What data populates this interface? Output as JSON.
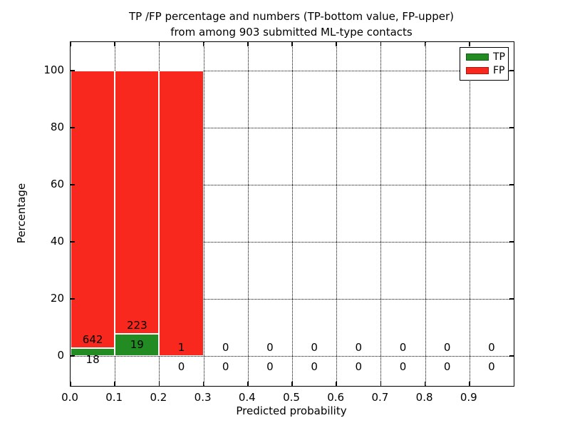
{
  "chart_data": {
    "type": "bar",
    "stacked": true,
    "title_line1": "TP /FP percentage and numbers (TP-bottom value, FP-upper)",
    "title_line2": "from among 903 submitted ML-type contacts",
    "xlabel": "Predicted probability",
    "ylabel": "Percentage",
    "total_contacts": 903,
    "xlim": [
      0.0,
      1.0
    ],
    "ylim": [
      -10,
      110
    ],
    "grid": "dotted",
    "x_tick_labels": [
      "0.0",
      "0.1",
      "0.2",
      "0.3",
      "0.4",
      "0.5",
      "0.6",
      "0.7",
      "0.8",
      "0.9"
    ],
    "y_tick_labels": [
      "0",
      "20",
      "40",
      "60",
      "80",
      "100"
    ],
    "y_tick_values": [
      0,
      20,
      40,
      60,
      80,
      100
    ],
    "bin_width": 0.1,
    "bins": [
      {
        "range": "0.0-0.1",
        "tp": 18,
        "fp": 642
      },
      {
        "range": "0.1-0.2",
        "tp": 19,
        "fp": 223
      },
      {
        "range": "0.2-0.3",
        "tp": 0,
        "fp": 1
      },
      {
        "range": "0.3-0.4",
        "tp": 0,
        "fp": 0
      },
      {
        "range": "0.4-0.5",
        "tp": 0,
        "fp": 0
      },
      {
        "range": "0.5-0.6",
        "tp": 0,
        "fp": 0
      },
      {
        "range": "0.6-0.7",
        "tp": 0,
        "fp": 0
      },
      {
        "range": "0.7-0.8",
        "tp": 0,
        "fp": 0
      },
      {
        "range": "0.8-0.9",
        "tp": 0,
        "fp": 0
      },
      {
        "range": "0.9-1.0",
        "tp": 0,
        "fp": 0
      }
    ],
    "legend": {
      "position": "upper right",
      "entries": [
        {
          "label": "TP",
          "color": "#228b22"
        },
        {
          "label": "FP",
          "color": "#f8281e"
        }
      ]
    }
  }
}
